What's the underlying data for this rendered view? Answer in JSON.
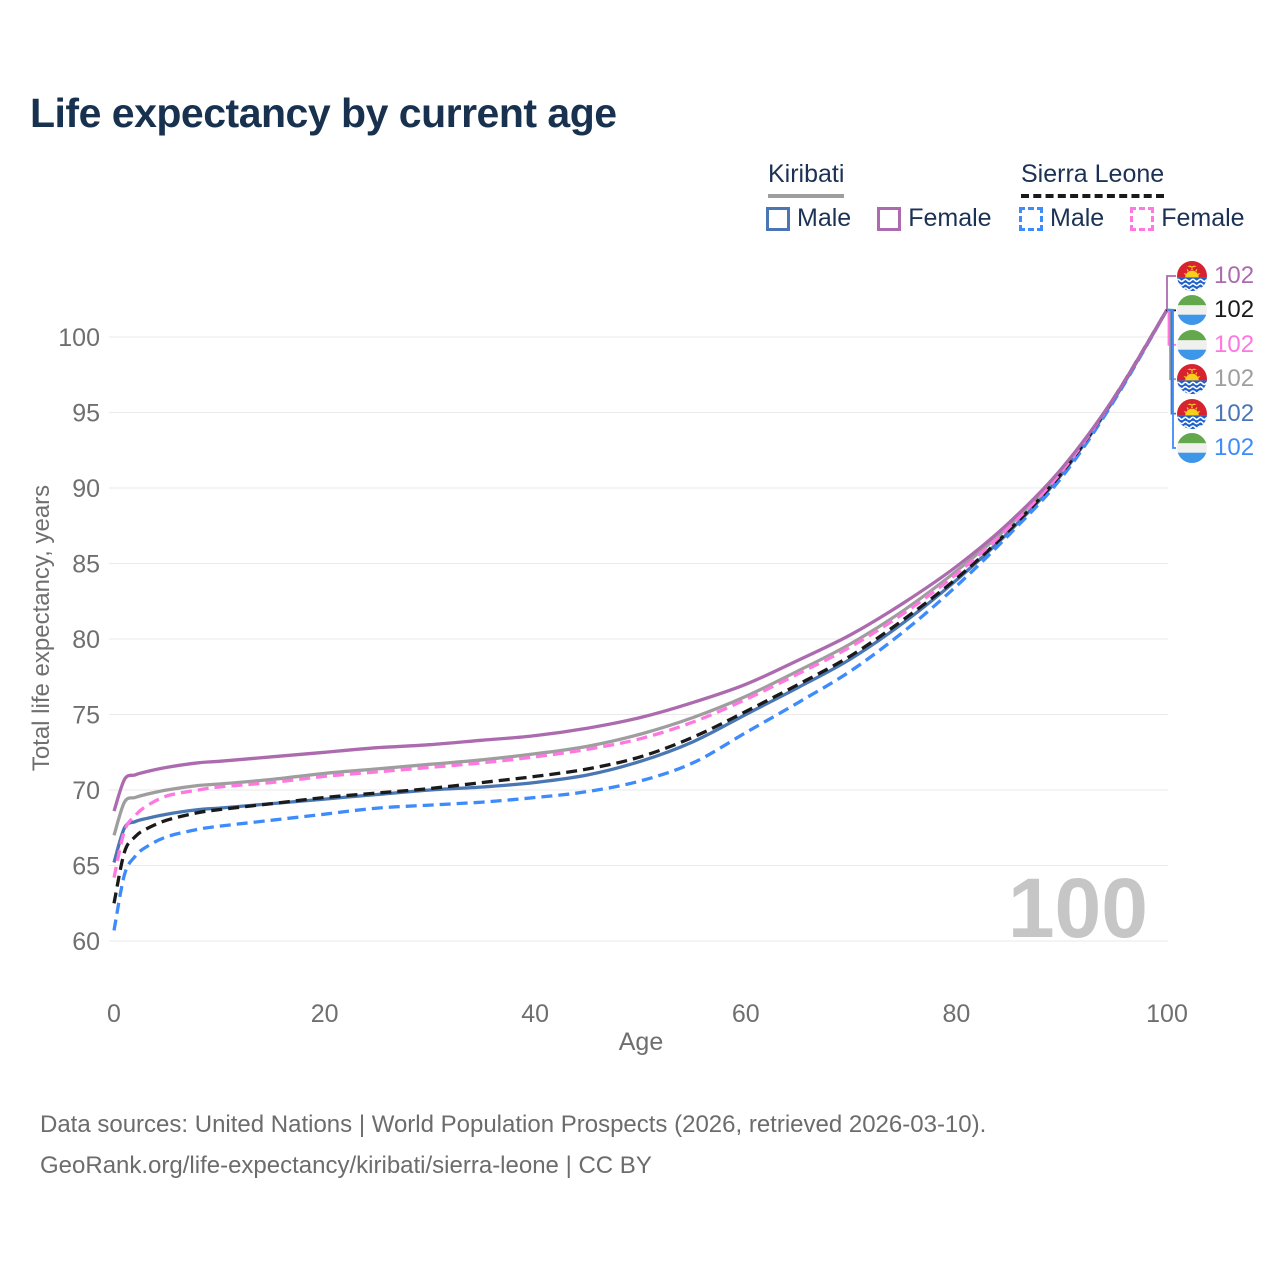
{
  "header": {
    "title": "Life expectancy by current age"
  },
  "legend": {
    "groups": [
      {
        "id": "kiribati",
        "label": "Kiribati",
        "line_style": "solid",
        "line_color": "#9E9E9E",
        "items": [
          {
            "label": "Male",
            "color": "#4A77B4",
            "dash": false
          },
          {
            "label": "Female",
            "color": "#AC6BAE",
            "dash": false
          }
        ]
      },
      {
        "id": "sierra-leone",
        "label": "Sierra Leone",
        "line_style": "dashed",
        "line_color": "#1A1A1A",
        "items": [
          {
            "label": "Male",
            "color": "#3E8BFB",
            "dash": true
          },
          {
            "label": "Female",
            "color": "#FF77E1",
            "dash": true
          }
        ]
      }
    ]
  },
  "axes": {
    "x_label": "Age",
    "y_label": "Total life expectancy, years"
  },
  "chart_data": {
    "type": "line",
    "title": "Life expectancy by current age",
    "xlabel": "Age",
    "ylabel": "Total life expectancy, years",
    "xlim": [
      0,
      100
    ],
    "ylim": [
      58,
      104
    ],
    "xticks": [
      0,
      20,
      40,
      60,
      80,
      100
    ],
    "yticks": [
      60,
      65,
      70,
      75,
      80,
      85,
      90,
      95,
      100
    ],
    "grid": "horizontal",
    "legend_position": "top-right",
    "age_watermark": "100",
    "x": [
      0,
      1,
      2,
      3,
      5,
      8,
      10,
      15,
      20,
      25,
      30,
      35,
      40,
      45,
      50,
      55,
      60,
      65,
      70,
      75,
      80,
      85,
      90,
      95,
      100
    ],
    "series": [
      {
        "id": "kiribati-female",
        "name": "Kiribati Female",
        "country": "Kiribati",
        "sex": "Female",
        "color": "#AC6BAE",
        "dash": false,
        "flag": "kiribati",
        "end_label": "102",
        "values": [
          68.6,
          70.7,
          71.0,
          71.2,
          71.5,
          71.8,
          71.9,
          72.2,
          72.5,
          72.8,
          73.0,
          73.3,
          73.6,
          74.1,
          74.8,
          75.8,
          77.0,
          78.6,
          80.3,
          82.4,
          84.8,
          87.7,
          91.3,
          96.0,
          101.8
        ]
      },
      {
        "id": "sierra-leone-combined",
        "name": "Sierra Leone",
        "country": "Sierra Leone",
        "sex": "Both",
        "color": "#1A1A1A",
        "dash": true,
        "flag": "sierra-leone",
        "end_label": "102",
        "values": [
          62.5,
          65.9,
          66.9,
          67.4,
          68.0,
          68.5,
          68.7,
          69.1,
          69.5,
          69.8,
          70.1,
          70.5,
          70.9,
          71.4,
          72.2,
          73.5,
          75.2,
          77.0,
          78.9,
          81.3,
          84.0,
          87.2,
          91.0,
          96.0,
          101.8
        ]
      },
      {
        "id": "sierra-leone-female",
        "name": "Sierra Leone Female",
        "country": "Sierra Leone",
        "sex": "Female",
        "color": "#FF77E1",
        "dash": true,
        "flag": "sierra-leone",
        "end_label": "102",
        "values": [
          64.2,
          67.3,
          68.3,
          68.9,
          69.6,
          70.0,
          70.2,
          70.5,
          70.9,
          71.2,
          71.5,
          71.8,
          72.2,
          72.7,
          73.4,
          74.5,
          76.0,
          77.7,
          79.5,
          81.7,
          84.3,
          87.4,
          91.1,
          96.0,
          101.8
        ]
      },
      {
        "id": "kiribati-combined",
        "name": "Kiribati",
        "country": "Kiribati",
        "sex": "Both",
        "color": "#9E9E9E",
        "dash": false,
        "flag": "kiribati",
        "end_label": "102",
        "values": [
          67.0,
          69.2,
          69.5,
          69.7,
          70.0,
          70.3,
          70.4,
          70.7,
          71.1,
          71.4,
          71.7,
          72.0,
          72.4,
          72.9,
          73.7,
          74.8,
          76.2,
          77.9,
          79.7,
          81.9,
          84.5,
          87.5,
          91.2,
          96.0,
          101.8
        ]
      },
      {
        "id": "kiribati-male",
        "name": "Kiribati Male",
        "country": "Kiribati",
        "sex": "Male",
        "color": "#4A77B4",
        "dash": false,
        "flag": "kiribati",
        "end_label": "102",
        "values": [
          65.2,
          67.5,
          67.9,
          68.1,
          68.4,
          68.7,
          68.8,
          69.1,
          69.4,
          69.7,
          70.0,
          70.2,
          70.5,
          71.0,
          71.9,
          73.2,
          75.0,
          76.8,
          78.7,
          81.1,
          83.9,
          87.1,
          90.9,
          95.9,
          101.8
        ]
      },
      {
        "id": "sierra-leone-male",
        "name": "Sierra Leone Male",
        "country": "Sierra Leone",
        "sex": "Male",
        "color": "#3E8BFB",
        "dash": true,
        "flag": "sierra-leone",
        "end_label": "102",
        "values": [
          60.7,
          64.4,
          65.6,
          66.2,
          66.9,
          67.4,
          67.6,
          68.0,
          68.4,
          68.8,
          69.0,
          69.2,
          69.5,
          69.9,
          70.6,
          71.8,
          73.8,
          75.8,
          77.9,
          80.5,
          83.5,
          86.9,
          90.7,
          95.8,
          101.8
        ]
      }
    ]
  },
  "footer": {
    "line1": "Data sources: United Nations | World Population Prospects (2026, retrieved 2026-03-10).",
    "line2": "GeoRank.org/life-expectancy/kiribati/sierra-leone | CC BY"
  }
}
